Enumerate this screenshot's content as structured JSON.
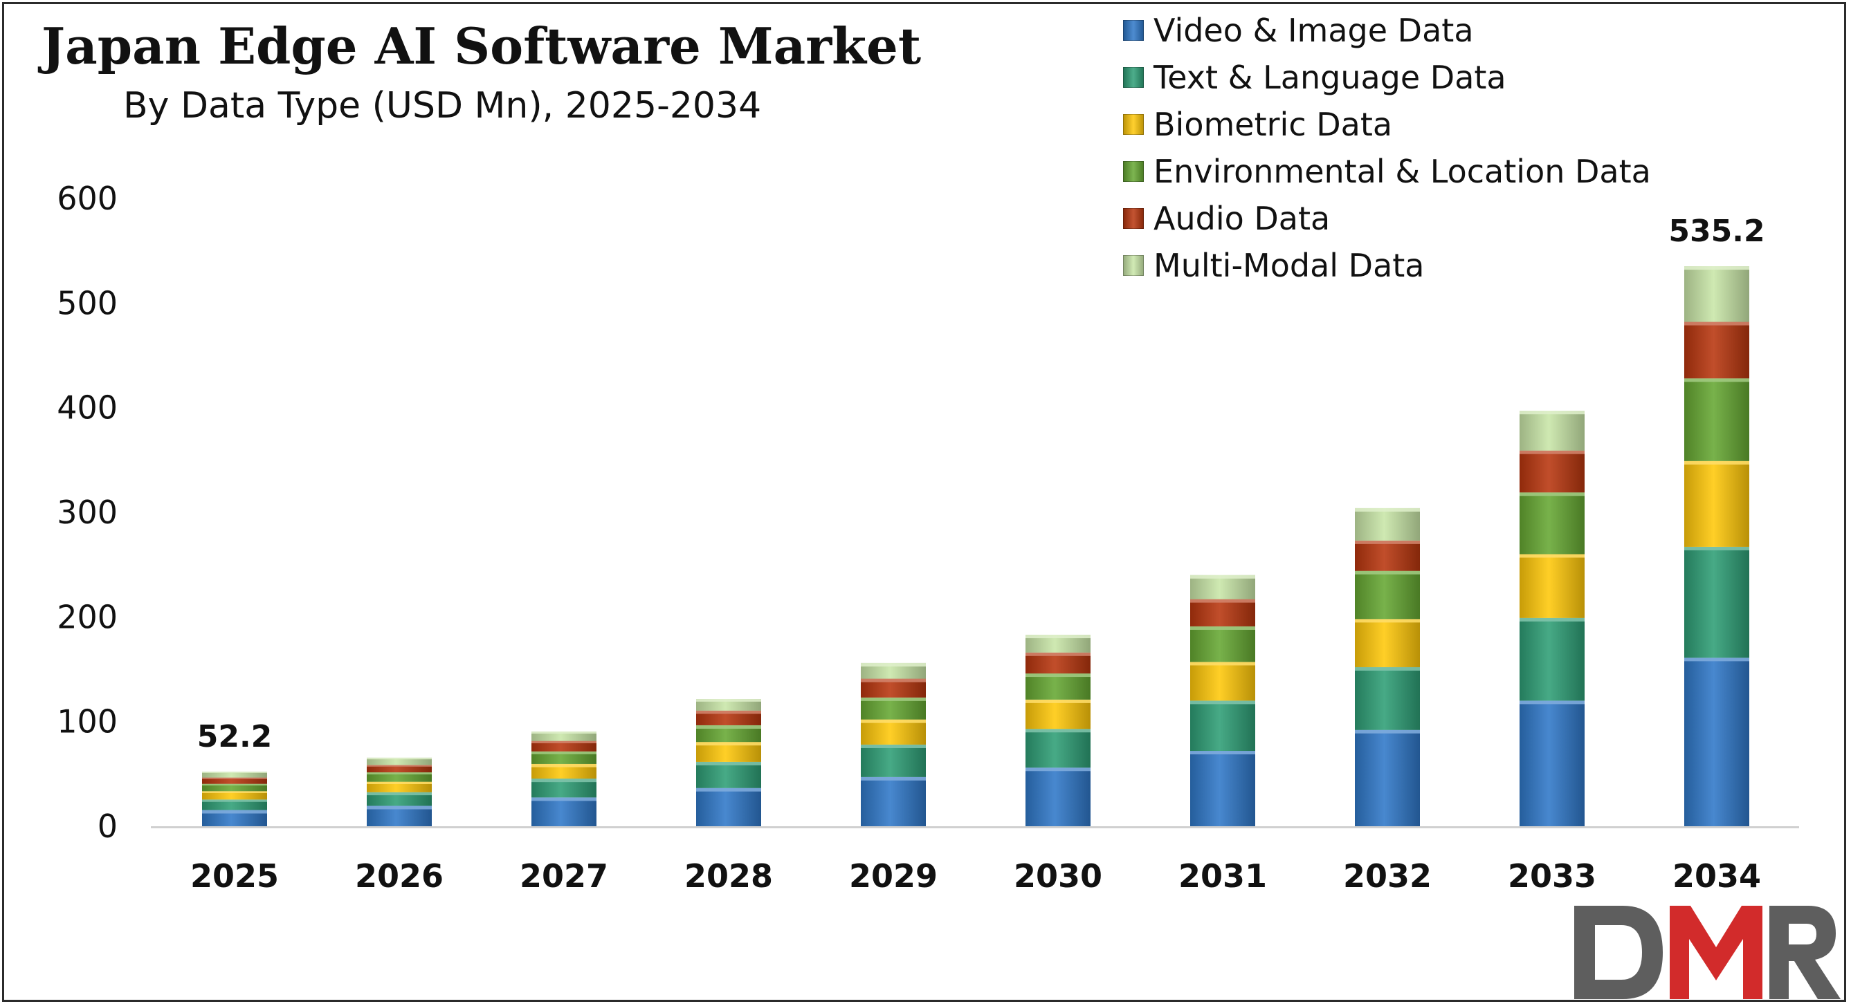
{
  "chart_data": {
    "type": "bar",
    "stacked": true,
    "title": "Japan Edge AI Software Market",
    "subtitle": "By Data Type (USD Mn), 2025-2034",
    "categories": [
      "2025",
      "2026",
      "2027",
      "2028",
      "2029",
      "2030",
      "2031",
      "2032",
      "2033",
      "2034"
    ],
    "series": [
      {
        "name": "Video & Image Data",
        "color": "#2F78C8",
        "values": [
          15.5,
          19.5,
          27.5,
          36.5,
          47,
          56,
          72,
          92,
          120,
          161
        ]
      },
      {
        "name": "Text & Language Data",
        "color": "#2E9E76",
        "values": [
          10,
          13,
          18,
          25,
          31,
          37,
          48,
          60,
          79,
          106
        ]
      },
      {
        "name": "Biometric Data",
        "color": "#FFC80A",
        "values": [
          8,
          10,
          14,
          19,
          24,
          28,
          37,
          46,
          61,
          82
        ]
      },
      {
        "name": "Environmental & Location Data",
        "color": "#66A832",
        "values": [
          7,
          9,
          12,
          16,
          21,
          25,
          34,
          46,
          59,
          79
        ]
      },
      {
        "name": "Audio Data",
        "color": "#B8360E",
        "values": [
          6,
          7,
          10,
          14,
          18,
          20,
          26,
          29,
          40,
          54
        ]
      },
      {
        "name": "Multi-Modal Data",
        "color": "#C9E6A8",
        "values": [
          5.7,
          7,
          9,
          11,
          15,
          17,
          23,
          31,
          38,
          53.2
        ]
      }
    ],
    "data_labels": [
      {
        "category": "2025",
        "text": "52.2"
      },
      {
        "category": "2034",
        "text": "535.2"
      }
    ],
    "yticks": [
      0,
      100,
      200,
      300,
      400,
      500,
      600
    ],
    "ylim": [
      0,
      600
    ],
    "xlabel": "",
    "ylabel": "",
    "grid": false,
    "legend_position": "top-right"
  },
  "logo": {
    "text": "DMR",
    "colors": [
      "#5E5E5E",
      "#D22B2B"
    ]
  }
}
